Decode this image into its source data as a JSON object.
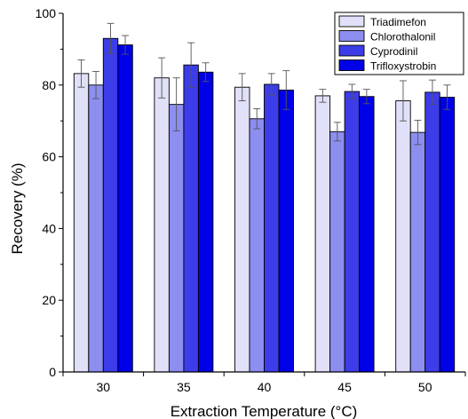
{
  "chart_data": {
    "type": "bar",
    "title": "",
    "xlabel": "Extraction Temperature (°C)",
    "ylabel": "Recovery (%)",
    "categories": [
      "30",
      "35",
      "40",
      "45",
      "50"
    ],
    "ylim": [
      0,
      100
    ],
    "yticks": [
      "0",
      "20",
      "40",
      "60",
      "80",
      "100"
    ],
    "grid": false,
    "legend_position": "top-right",
    "series": [
      {
        "name": "Triadimefon",
        "color": "#e0e0f8",
        "values": [
          83.2,
          82.0,
          79.4,
          77.0,
          75.6
        ],
        "errors": [
          3.8,
          5.6,
          3.8,
          1.8,
          5.6
        ]
      },
      {
        "name": "Chlorothalonil",
        "color": "#8c8ef0",
        "values": [
          80.0,
          74.6,
          70.6,
          67.0,
          66.8
        ],
        "errors": [
          3.8,
          7.4,
          2.8,
          2.6,
          3.4
        ]
      },
      {
        "name": "Cyprodinil",
        "color": "#3c3ce8",
        "values": [
          93.0,
          85.6,
          80.2,
          78.2,
          78.0
        ],
        "errors": [
          4.2,
          6.2,
          3.0,
          2.0,
          3.4
        ]
      },
      {
        "name": "Trifloxystrobin",
        "color": "#0000e8",
        "values": [
          91.2,
          83.6,
          78.6,
          76.8,
          76.6
        ],
        "errors": [
          2.6,
          2.6,
          5.4,
          2.0,
          3.4
        ]
      }
    ]
  }
}
